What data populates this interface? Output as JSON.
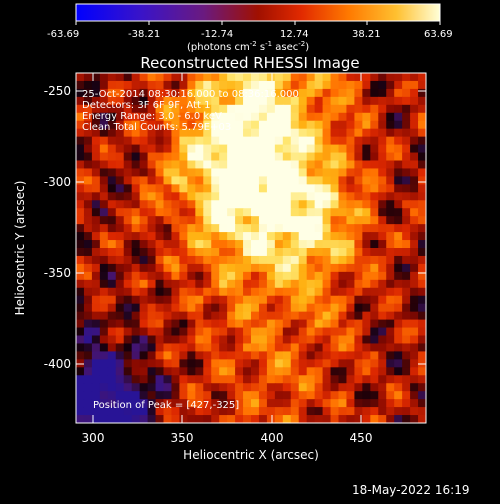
{
  "colorbar": {
    "ticks": [
      "-63.69",
      "-38.21",
      "-12.74",
      "12.74",
      "38.21",
      "63.69"
    ],
    "units_main": "(photons cm",
    "units_sup1": "-2",
    "units_mid1": " s",
    "units_sup2": "-1",
    "units_mid2": " asec",
    "units_sup3": "-2",
    "units_end": ")"
  },
  "title": "Reconstructed RHESSI Image",
  "annotation": {
    "line1": "25-Oct-2014 08:30:16.000 to 08:36:16.000",
    "line2": "Detectors: 3F 6F 9F, Att 1",
    "line3": "Energy Range: 3.0 - 6.0 keV",
    "line4": "Clean    Total Counts: 5.79E+03",
    "peak": "Position of Peak = [427,-325]"
  },
  "axes": {
    "xlabel": "Heliocentric X (arcsec)",
    "ylabel": "Heliocentric Y (arcsec)",
    "xticks": [
      "300",
      "350",
      "400",
      "450"
    ],
    "yticks": [
      "-250",
      "-300",
      "-350",
      "-400"
    ]
  },
  "footer_timestamp": "18-May-2022 16:19",
  "colors": {
    "background": "#000000",
    "colormap": [
      "#0000ff",
      "#5a1aa0",
      "#000000",
      "#b41200",
      "#ff4a00",
      "#ff9a00",
      "#ffe060",
      "#ffffff"
    ]
  }
}
